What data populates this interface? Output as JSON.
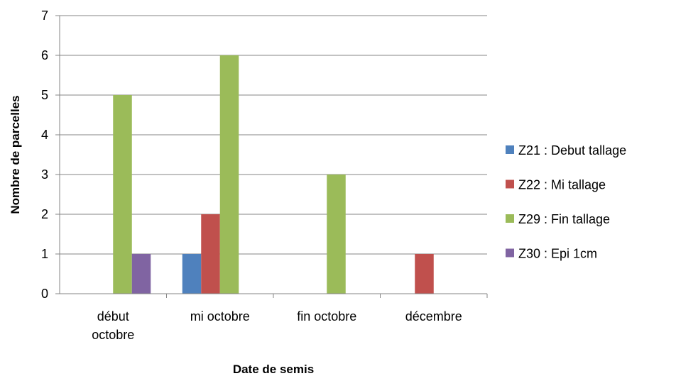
{
  "chart_data": {
    "type": "bar",
    "title": "",
    "xlabel": "Date de semis",
    "ylabel": "Nombre de parcelles",
    "ylim": [
      0,
      7
    ],
    "yticks": [
      0,
      1,
      2,
      3,
      4,
      5,
      6,
      7
    ],
    "grid": true,
    "legend_position": "right",
    "categories": [
      [
        "début",
        "octobre"
      ],
      [
        "mi octobre"
      ],
      [
        "fin octobre"
      ],
      [
        "décembre"
      ]
    ],
    "series": [
      {
        "name": "Z21 : Debut tallage",
        "color": "#4f81bd",
        "values": [
          0,
          1,
          0,
          0
        ]
      },
      {
        "name": "Z22 : Mi tallage",
        "color": "#c0504d",
        "values": [
          0,
          2,
          0,
          1
        ]
      },
      {
        "name": "Z29 : Fin tallage",
        "color": "#9bbb59",
        "values": [
          5,
          6,
          3,
          0
        ]
      },
      {
        "name": "Z30 : Epi 1cm",
        "color": "#8064a2",
        "values": [
          1,
          0,
          0,
          0
        ]
      }
    ]
  }
}
